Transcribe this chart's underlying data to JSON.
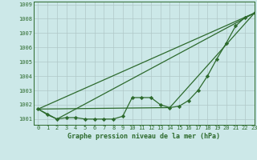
{
  "bg_color": "#cce8e8",
  "grid_color": "#b0c8c8",
  "line_color": "#2d6a2d",
  "marker_color": "#2d6a2d",
  "title": "Graphe pression niveau de la mer (hPa)",
  "xlim": [
    -0.5,
    23
  ],
  "ylim": [
    1000.6,
    1009.2
  ],
  "yticks": [
    1001,
    1002,
    1003,
    1004,
    1005,
    1006,
    1007,
    1008,
    1009
  ],
  "xticks": [
    0,
    1,
    2,
    3,
    4,
    5,
    6,
    7,
    8,
    9,
    10,
    11,
    12,
    13,
    14,
    15,
    16,
    17,
    18,
    19,
    20,
    21,
    22,
    23
  ],
  "series1": [
    1001.7,
    1001.3,
    1001.0,
    1001.1,
    1001.1,
    1001.0,
    1001.0,
    1001.0,
    1001.0,
    1001.2,
    1002.5,
    1002.5,
    1002.5,
    1002.0,
    1001.8,
    1001.9,
    1002.3,
    1003.0,
    1004.0,
    1005.2,
    1006.3,
    1007.5,
    1008.1,
    1008.4
  ],
  "line1_x": [
    0,
    23
  ],
  "line1_y": [
    1001.7,
    1008.4
  ],
  "line2_x": [
    0,
    2,
    23
  ],
  "line2_y": [
    1001.7,
    1001.0,
    1008.4
  ],
  "line3_x": [
    0,
    14,
    23
  ],
  "line3_y": [
    1001.7,
    1001.8,
    1008.4
  ]
}
